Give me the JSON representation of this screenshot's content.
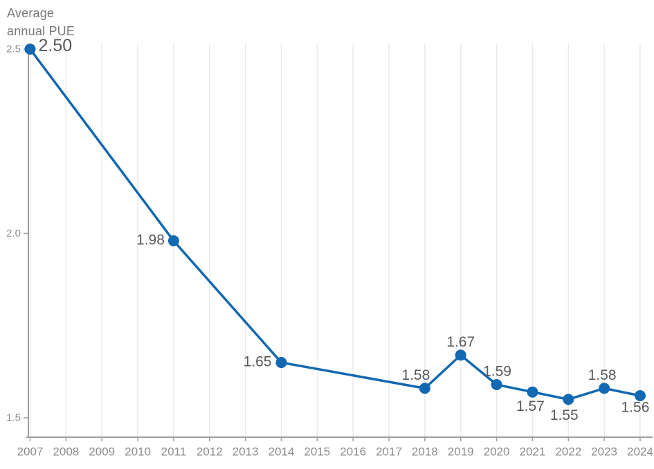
{
  "chart_data": {
    "type": "line",
    "title": "Average annual PUE",
    "ylabel": "Average annual PUE",
    "ylabel_lines": [
      "Average",
      "annual PUE"
    ],
    "xlabel": "",
    "grid": "vertical-only",
    "legend": "none",
    "x": [
      "2007",
      "2008",
      "2009",
      "2010",
      "2011",
      "2012",
      "2013",
      "2014",
      "2015",
      "2016",
      "2017",
      "2018",
      "2019",
      "2020",
      "2021",
      "2022",
      "2023",
      "2024"
    ],
    "yticks": [
      {
        "value": 2.5,
        "label": "2.5"
      },
      {
        "value": 2.0,
        "label": "2.0"
      },
      {
        "value": 1.5,
        "label": "1.5"
      }
    ],
    "ylim": [
      1.45,
      2.51
    ],
    "series": [
      {
        "name": "Average annual PUE",
        "points": [
          {
            "year": 2007,
            "value": 2.5,
            "label": "2.50",
            "label_anchor": "start",
            "label_offset": [
              12,
              -5
            ]
          },
          {
            "year": 2011,
            "value": 1.98,
            "label": "1.98",
            "label_anchor": "end",
            "label_offset": [
              -13,
              -1
            ]
          },
          {
            "year": 2014,
            "value": 1.65,
            "label": "1.65",
            "label_anchor": "end",
            "label_offset": [
              -14,
              -1
            ]
          },
          {
            "year": 2018,
            "value": 1.58,
            "label": "1.58",
            "label_anchor": "middle",
            "label_offset": [
              -13,
              -19
            ]
          },
          {
            "year": 2019,
            "value": 1.67,
            "label": "1.67",
            "label_anchor": "middle",
            "label_offset": [
              0,
              -19
            ]
          },
          {
            "year": 2020,
            "value": 1.59,
            "label": "1.59",
            "label_anchor": "middle",
            "label_offset": [
              1,
              -19
            ]
          },
          {
            "year": 2021,
            "value": 1.57,
            "label": "1.57",
            "label_anchor": "middle",
            "label_offset": [
              -3,
              21
            ]
          },
          {
            "year": 2022,
            "value": 1.55,
            "label": "1.55",
            "label_anchor": "middle",
            "label_offset": [
              -6,
              23
            ]
          },
          {
            "year": 2023,
            "value": 1.58,
            "label": "1.58",
            "label_anchor": "middle",
            "label_offset": [
              -3,
              -19
            ]
          },
          {
            "year": 2024,
            "value": 1.56,
            "label": "1.56",
            "label_anchor": "middle",
            "label_offset": [
              -7,
              17
            ]
          }
        ]
      }
    ],
    "colors": {
      "line": "#1268b1",
      "dot": "#1268b1",
      "data_label": "#57585a",
      "tick_label": "#8c8d8f",
      "axis": "#9c9da0",
      "grid": "#e9eaeb",
      "title": "#76777a",
      "background": "#ffffff"
    }
  }
}
